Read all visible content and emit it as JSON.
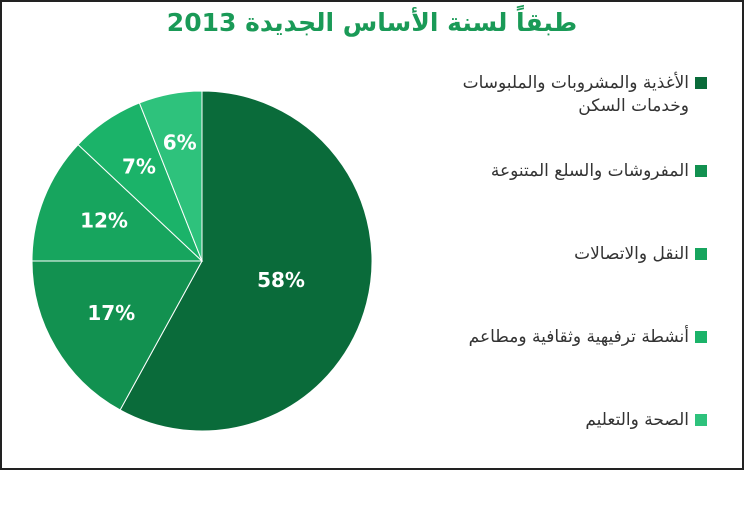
{
  "chart_data": {
    "type": "pie",
    "title": "طبقاً لسنة الأساس الجديدة 2013",
    "slices": [
      {
        "label": "الأغذية والمشروبات والملبوسات وخدمات السكن",
        "value": 58,
        "display": "58%",
        "color": "#0a6b3a"
      },
      {
        "label": "المفروشات والسلع المتنوعة",
        "value": 17,
        "display": "17%",
        "color": "#129150"
      },
      {
        "label": "النقل والاتصالات",
        "value": 12,
        "display": "12%",
        "color": "#17a55e"
      },
      {
        "label": "أنشطة ترفيهية وثقافية ومطاعم",
        "value": 7,
        "display": "7%",
        "color": "#1bb369"
      },
      {
        "label": "الصحة والتعليم",
        "value": 6,
        "display": "6%",
        "color": "#2ec27c"
      }
    ],
    "legend_position": "right"
  }
}
